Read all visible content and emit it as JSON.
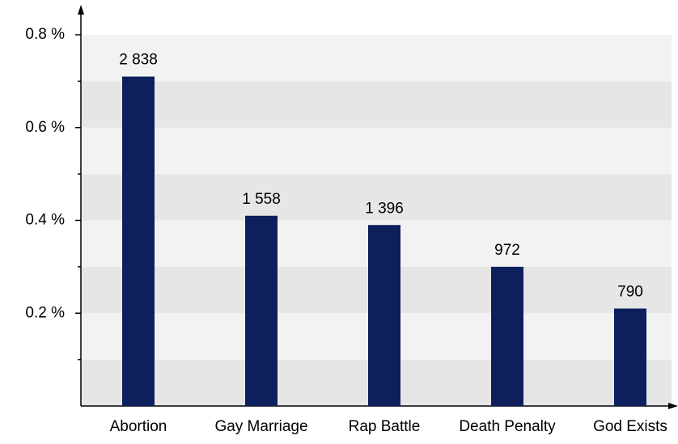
{
  "chart_data": {
    "type": "bar",
    "categories": [
      "Abortion",
      "Gay Marriage",
      "Rap Battle",
      "Death Penalty",
      "God Exists"
    ],
    "values": [
      0.71,
      0.41,
      0.39,
      0.3,
      0.21
    ],
    "counts": [
      2838,
      1558,
      1396,
      972,
      790
    ],
    "count_labels": [
      "2 838",
      "1 558",
      "1 396",
      "972",
      "790"
    ],
    "color": "#0d1f5c",
    "ylim": [
      0,
      0.8
    ],
    "yticks": [
      {
        "value": 0.2,
        "label": "0.2 %"
      },
      {
        "value": 0.4,
        "label": "0.4 %"
      },
      {
        "value": 0.6,
        "label": "0.6 %"
      },
      {
        "value": 0.8,
        "label": "0.8 %"
      }
    ],
    "yticks_minor": [
      0.1,
      0.3,
      0.5,
      0.7
    ],
    "grid": true
  }
}
